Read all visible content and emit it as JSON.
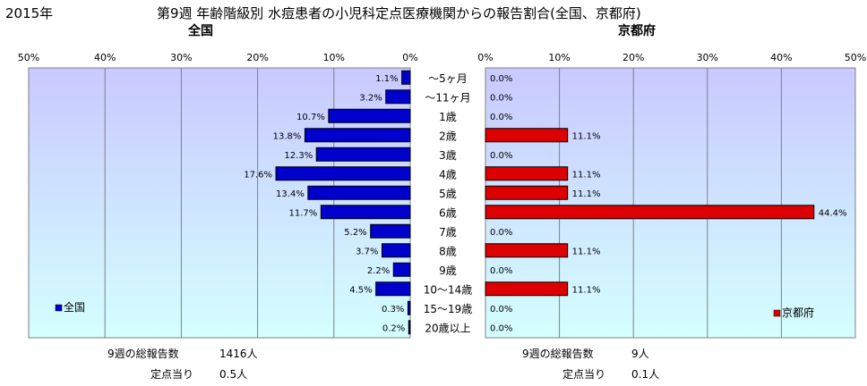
{
  "header": {
    "year": "2015年",
    "title": "第9週 年齢階級別 水痘患者の小児科定点医療機関からの報告割合(全国、京都府)"
  },
  "colors": {
    "national_bar": "#0000cc",
    "kyoto_bar": "#dd0000",
    "plot_top": "#c9c9ff",
    "plot_bottom": "#d4ffff",
    "grid": "#808080"
  },
  "chart_data": [
    {
      "type": "bar",
      "orientation": "horizontal",
      "direction": "right-to-left",
      "title": "全国",
      "legend": "全国",
      "legend_position": "bottom-left",
      "xlim": [
        0,
        50
      ],
      "xticks": [
        "50%",
        "40%",
        "30%",
        "20%",
        "10%",
        "0%"
      ],
      "grid": true,
      "categories": [
        "～5ヶ月",
        "～11ヶ月",
        "1歳",
        "2歳",
        "3歳",
        "4歳",
        "5歳",
        "6歳",
        "7歳",
        "8歳",
        "9歳",
        "10～14歳",
        "15～19歳",
        "20歳以上"
      ],
      "values": [
        1.1,
        3.2,
        10.7,
        13.8,
        12.3,
        17.6,
        13.4,
        11.7,
        5.2,
        3.7,
        2.2,
        4.5,
        0.3,
        0.2
      ],
      "value_labels": [
        "1.1%",
        "3.2%",
        "10.7%",
        "13.8%",
        "12.3%",
        "17.6%",
        "13.4%",
        "11.7%",
        "5.2%",
        "3.7%",
        "2.2%",
        "4.5%",
        "0.3%",
        "0.2%"
      ]
    },
    {
      "type": "bar",
      "orientation": "horizontal",
      "title": "京都府",
      "legend": "京都府",
      "legend_position": "bottom-right",
      "xlim": [
        0,
        50
      ],
      "xticks": [
        "0%",
        "10%",
        "20%",
        "30%",
        "40%",
        "50%"
      ],
      "grid": true,
      "categories": [
        "～5ヶ月",
        "～11ヶ月",
        "1歳",
        "2歳",
        "3歳",
        "4歳",
        "5歳",
        "6歳",
        "7歳",
        "8歳",
        "9歳",
        "10～14歳",
        "15～19歳",
        "20歳以上"
      ],
      "values": [
        0,
        0,
        0,
        11.1,
        0,
        11.1,
        11.1,
        44.4,
        0,
        11.1,
        0,
        11.1,
        0,
        0
      ],
      "value_labels": [
        "0.0%",
        "0.0%",
        "0.0%",
        "11.1%",
        "0.0%",
        "11.1%",
        "11.1%",
        "44.4%",
        "0.0%",
        "11.1%",
        "0.0%",
        "11.1%",
        "0.0%",
        "0.0%"
      ]
    }
  ],
  "footer": {
    "national": {
      "total_label": "9週の総報告数",
      "total_value": "1416人",
      "per_label": "定点当り",
      "per_value": "0.5人"
    },
    "kyoto": {
      "total_label": "9週の総報告数",
      "total_value": "9人",
      "per_label": "定点当り",
      "per_value": "0.1人"
    }
  }
}
